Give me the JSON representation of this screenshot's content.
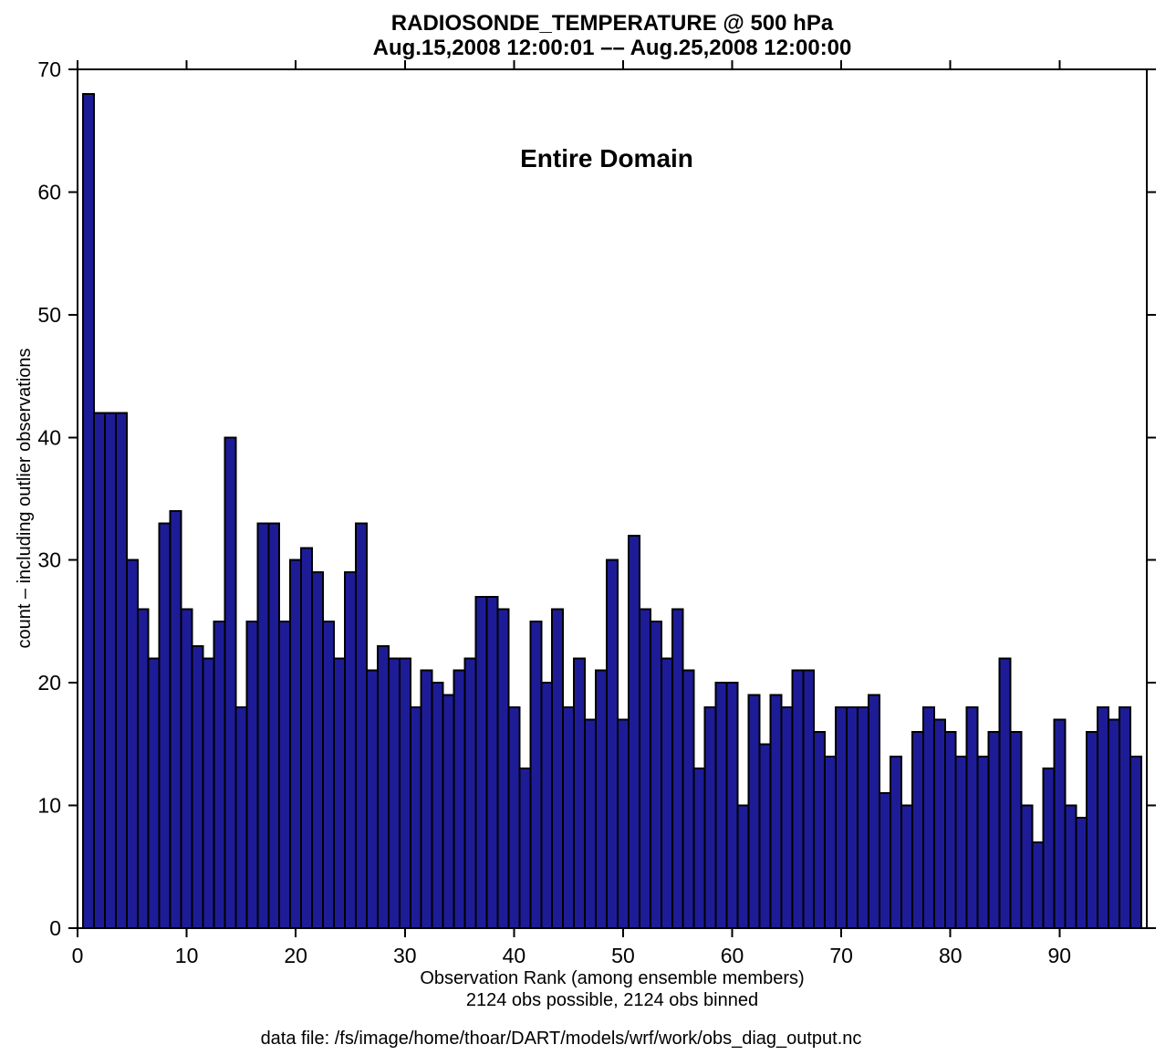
{
  "chart_data": {
    "type": "bar",
    "title": "RADIOSONDE_TEMPERATURE @ 500 hPa",
    "subtitle": "Aug.15,2008 12:00:01 –– Aug.25,2008 12:00:00",
    "annotation": "Entire Domain",
    "xlabel": "Observation Rank (among ensemble members)",
    "xlabel_line2": "2124 obs possible, 2124 obs binned",
    "ylabel": "count – including outlier observations",
    "footnote": "data file: /fs/image/home/thoar/DART/models/wrf/work/obs_diag_output.nc",
    "x_start_rank": 1,
    "values": [
      68,
      42,
      42,
      42,
      30,
      26,
      22,
      33,
      34,
      26,
      23,
      22,
      25,
      40,
      18,
      25,
      33,
      33,
      25,
      30,
      31,
      29,
      25,
      22,
      29,
      33,
      21,
      23,
      22,
      22,
      18,
      21,
      20,
      19,
      21,
      22,
      27,
      27,
      26,
      18,
      13,
      25,
      20,
      26,
      18,
      22,
      17,
      21,
      30,
      17,
      32,
      26,
      25,
      22,
      26,
      21,
      13,
      18,
      20,
      20,
      10,
      19,
      15,
      19,
      18,
      21,
      21,
      16,
      14,
      18,
      18,
      18,
      19,
      11,
      14,
      10,
      16,
      18,
      17,
      16,
      14,
      18,
      14,
      16,
      22,
      16,
      10,
      7,
      13,
      17,
      10,
      9,
      16,
      18,
      17,
      18,
      14
    ],
    "xlim": [
      0,
      98
    ],
    "ylim": [
      0,
      70
    ],
    "xticks": [
      0,
      10,
      20,
      30,
      40,
      50,
      60,
      70,
      80,
      90
    ],
    "yticks": [
      0,
      10,
      20,
      30,
      40,
      50,
      60,
      70
    ],
    "grid": false,
    "legend": null,
    "bar_color": "#1d1c96",
    "bar_edge_color": "#000000",
    "axis_color": "#000000"
  }
}
